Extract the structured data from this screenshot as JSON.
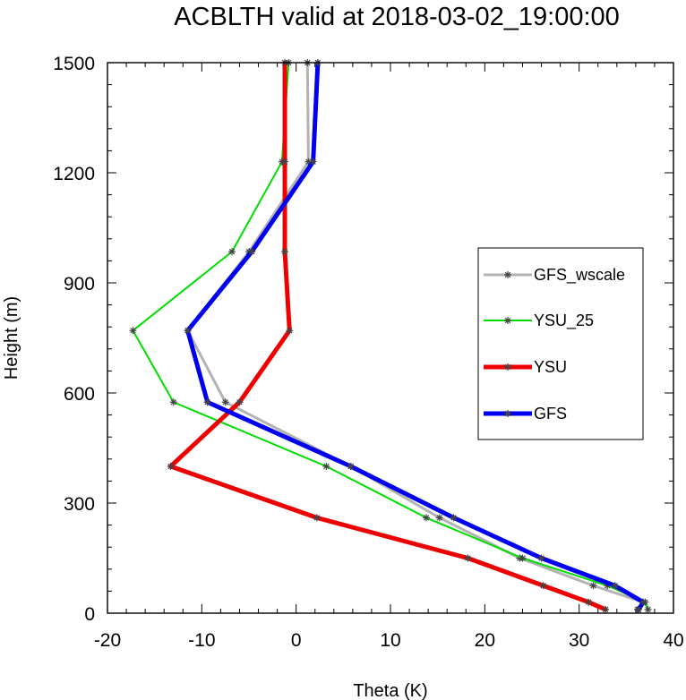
{
  "chart_data": {
    "type": "line",
    "title": "ACBLTH valid at 2018-03-02_19:00:00",
    "xlabel": "Theta (K)",
    "ylabel": "Height (m)",
    "xlim": [
      -20,
      40
    ],
    "ylim": [
      0,
      1500
    ],
    "xticks": [
      -20,
      -10,
      0,
      10,
      20,
      30,
      40
    ],
    "xtick_labels": [
      "-20",
      "-10",
      "0",
      "10",
      "20",
      "30",
      "40"
    ],
    "yticks": [
      0,
      300,
      600,
      900,
      1200,
      1500
    ],
    "ytick_labels": [
      "0",
      "300",
      "600",
      "900",
      "1200",
      "1500"
    ],
    "legend_position": "right",
    "series": [
      {
        "name": "GFS_wscale",
        "color": "#b3b3b3",
        "marker": "asterisk",
        "x": [
          36.2,
          36.8,
          31.5,
          23.7,
          15.2,
          5.8,
          -7.5,
          -11.5,
          -5.0,
          1.3,
          1.2
        ],
        "y": [
          10,
          30,
          75,
          150,
          260,
          400,
          575,
          770,
          985,
          1230,
          1500
        ]
      },
      {
        "name": "YSU_25",
        "color": "#00dd00",
        "marker": "asterisk",
        "x": [
          37.3,
          37.0,
          33.0,
          24.0,
          13.8,
          3.2,
          -13.0,
          -17.3,
          -6.8,
          -1.5,
          -0.8
        ],
        "y": [
          10,
          30,
          75,
          150,
          260,
          400,
          575,
          770,
          985,
          1230,
          1500
        ]
      },
      {
        "name": "YSU",
        "color": "#ee0000",
        "marker": "asterisk",
        "x": [
          32.8,
          31.0,
          26.2,
          18.2,
          2.2,
          -13.3,
          -6.0,
          -0.7,
          -1.2,
          -1.2,
          -1.2
        ],
        "y": [
          10,
          30,
          75,
          150,
          260,
          400,
          575,
          770,
          985,
          1230,
          1500
        ]
      },
      {
        "name": "GFS",
        "color": "#0000ee",
        "marker": "asterisk",
        "x": [
          36.3,
          36.8,
          33.8,
          26.0,
          16.7,
          5.8,
          -9.4,
          -11.5,
          -4.7,
          1.8,
          2.3
        ],
        "y": [
          10,
          30,
          75,
          150,
          260,
          400,
          575,
          770,
          985,
          1230,
          1500
        ]
      }
    ]
  }
}
